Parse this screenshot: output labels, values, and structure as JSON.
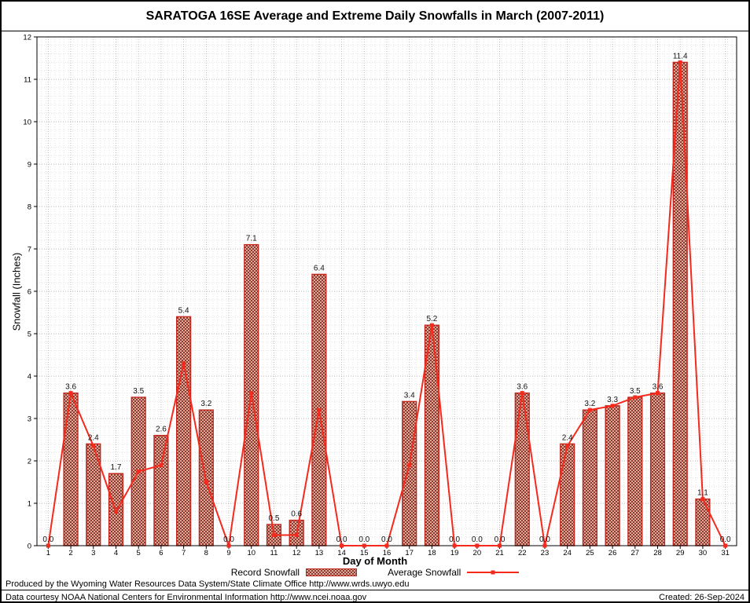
{
  "legend": {
    "record_label": "Record Snowfall",
    "average_label": "Average Snowfall"
  },
  "footer": {
    "produced_by": "Produced by the Wyoming Water Resources Data System/State Climate Office http://www.wrds.uwyo.edu",
    "data_courtesy": "Data courtesy NOAA National Centers for Environmental Information http://www.ncei.noaa.gov",
    "created": "Created: 26-Sep-2024"
  },
  "colors": {
    "bar_outline": "#c2251c",
    "bar_hatch": "#8f2a1e",
    "bar_bg": "#eedacb",
    "line": "#f52a1d",
    "grid_major": "#b8b8b8",
    "grid_minor": "#e4e4e4",
    "axis": "#000000",
    "label_text": "#111111"
  },
  "chart_data": {
    "type": "bar",
    "title": "SARATOGA 16SE Average and Extreme Daily Snowfalls in March (2007-2011)",
    "xlabel": "Day of Month",
    "ylabel": "Snowfall (Inches)",
    "ylim": [
      0,
      12
    ],
    "y_major_step": 1,
    "y_minor_step": 0.2,
    "x_minor_divisions": 5,
    "grid": true,
    "legend_position": "bottom",
    "bar_value_labels": true,
    "categories": [
      1,
      2,
      3,
      4,
      5,
      6,
      7,
      8,
      9,
      10,
      11,
      12,
      13,
      14,
      15,
      16,
      17,
      18,
      19,
      20,
      21,
      22,
      23,
      24,
      25,
      26,
      27,
      28,
      29,
      30,
      31
    ],
    "series": [
      {
        "name": "Record Snowfall",
        "type": "bar",
        "values": [
          0.0,
          3.6,
          2.4,
          1.7,
          3.5,
          2.6,
          5.4,
          3.2,
          0.0,
          7.1,
          0.5,
          0.6,
          6.4,
          0.0,
          0.0,
          0.0,
          3.4,
          5.2,
          0.0,
          0.0,
          0.0,
          3.6,
          0.0,
          2.4,
          3.2,
          3.3,
          3.5,
          3.6,
          11.4,
          1.1,
          0.0
        ]
      },
      {
        "name": "Average Snowfall",
        "type": "line",
        "values": [
          0.0,
          3.6,
          2.35,
          0.8,
          1.75,
          1.9,
          4.3,
          1.5,
          0.0,
          3.6,
          0.25,
          0.25,
          3.2,
          0.0,
          0.0,
          0.0,
          1.9,
          5.2,
          0.0,
          0.0,
          0.0,
          3.6,
          0.0,
          2.35,
          3.2,
          3.3,
          3.5,
          3.6,
          11.4,
          1.1,
          0.0
        ]
      }
    ]
  }
}
